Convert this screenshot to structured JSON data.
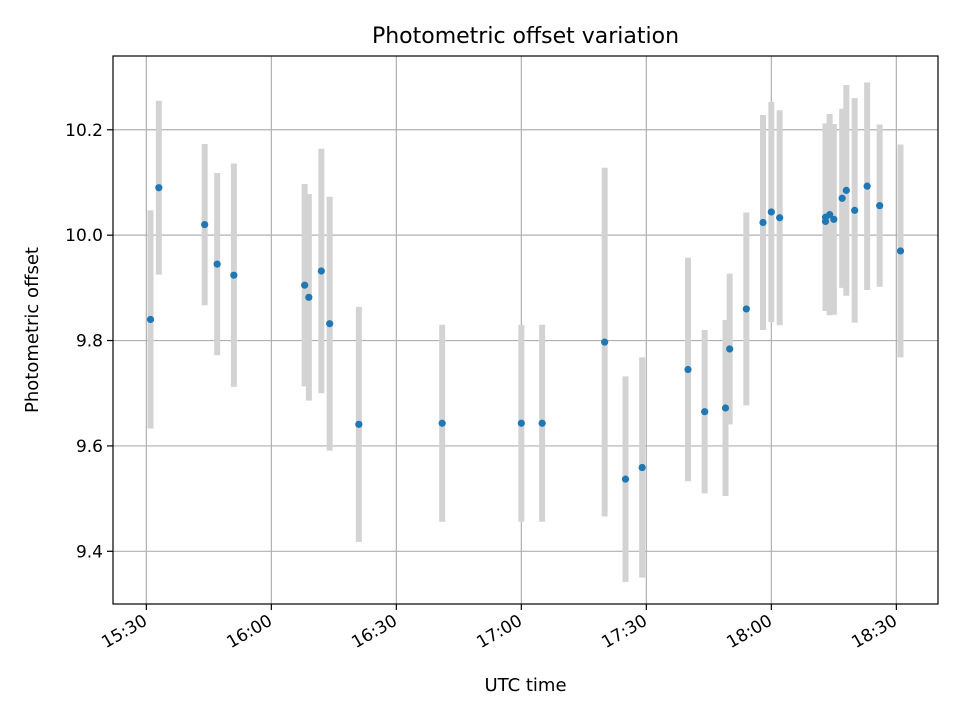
{
  "chart_data": {
    "type": "scatter",
    "title": "Photometric offset variation",
    "xlabel": "UTC time",
    "ylabel": "Photometric offset",
    "x_ticks": [
      "15:30",
      "16:00",
      "16:30",
      "17:00",
      "17:30",
      "18:00",
      "18:30"
    ],
    "y_ticks": [
      "9.4",
      "9.6",
      "9.8",
      "10.0",
      "10.2"
    ],
    "xlim": [
      "15:22",
      "18:40"
    ],
    "ylim": [
      9.3,
      10.34
    ],
    "grid": true,
    "colors": {
      "marker": "#1f77b4",
      "errorbar": "#d3d3d3",
      "grid": "#b0b0b0"
    },
    "points": [
      {
        "t": "15:31",
        "y": 9.84,
        "err": 0.207
      },
      {
        "t": "15:33",
        "y": 10.09,
        "err": 0.165
      },
      {
        "t": "15:44",
        "y": 10.02,
        "err": 0.153
      },
      {
        "t": "15:47",
        "y": 9.945,
        "err": 0.173
      },
      {
        "t": "15:51",
        "y": 9.924,
        "err": 0.212
      },
      {
        "t": "16:08",
        "y": 9.905,
        "err": 0.192
      },
      {
        "t": "16:09",
        "y": 9.882,
        "err": 0.196
      },
      {
        "t": "16:12",
        "y": 9.932,
        "err": 0.232
      },
      {
        "t": "16:14",
        "y": 9.832,
        "err": 0.241
      },
      {
        "t": "16:21",
        "y": 9.641,
        "err": 0.223
      },
      {
        "t": "16:41",
        "y": 9.643,
        "err": 0.187
      },
      {
        "t": "17:00",
        "y": 9.643,
        "err": 0.187
      },
      {
        "t": "17:05",
        "y": 9.643,
        "err": 0.187
      },
      {
        "t": "17:20",
        "y": 9.797,
        "err": 0.331
      },
      {
        "t": "17:25",
        "y": 9.537,
        "err": 0.195
      },
      {
        "t": "17:29",
        "y": 9.559,
        "err": 0.209
      },
      {
        "t": "17:40",
        "y": 9.745,
        "err": 0.212
      },
      {
        "t": "17:44",
        "y": 9.665,
        "err": 0.155
      },
      {
        "t": "17:49",
        "y": 9.672,
        "err": 0.167
      },
      {
        "t": "17:50",
        "y": 9.784,
        "err": 0.143
      },
      {
        "t": "17:54",
        "y": 9.86,
        "err": 0.183
      },
      {
        "t": "17:58",
        "y": 10.024,
        "err": 0.204
      },
      {
        "t": "18:00",
        "y": 10.044,
        "err": 0.209
      },
      {
        "t": "18:02",
        "y": 10.033,
        "err": 0.204
      },
      {
        "t": "18:13",
        "y": 10.034,
        "err": 0.178
      },
      {
        "t": "18:13",
        "y": 10.026,
        "err": 0.163
      },
      {
        "t": "18:14",
        "y": 10.039,
        "err": 0.191
      },
      {
        "t": "18:15",
        "y": 10.03,
        "err": 0.181
      },
      {
        "t": "18:17",
        "y": 10.07,
        "err": 0.17
      },
      {
        "t": "18:18",
        "y": 10.085,
        "err": 0.2
      },
      {
        "t": "18:20",
        "y": 10.047,
        "err": 0.213
      },
      {
        "t": "18:23",
        "y": 10.093,
        "err": 0.197
      },
      {
        "t": "18:26",
        "y": 10.056,
        "err": 0.154
      },
      {
        "t": "18:31",
        "y": 9.97,
        "err": 0.202
      }
    ]
  }
}
